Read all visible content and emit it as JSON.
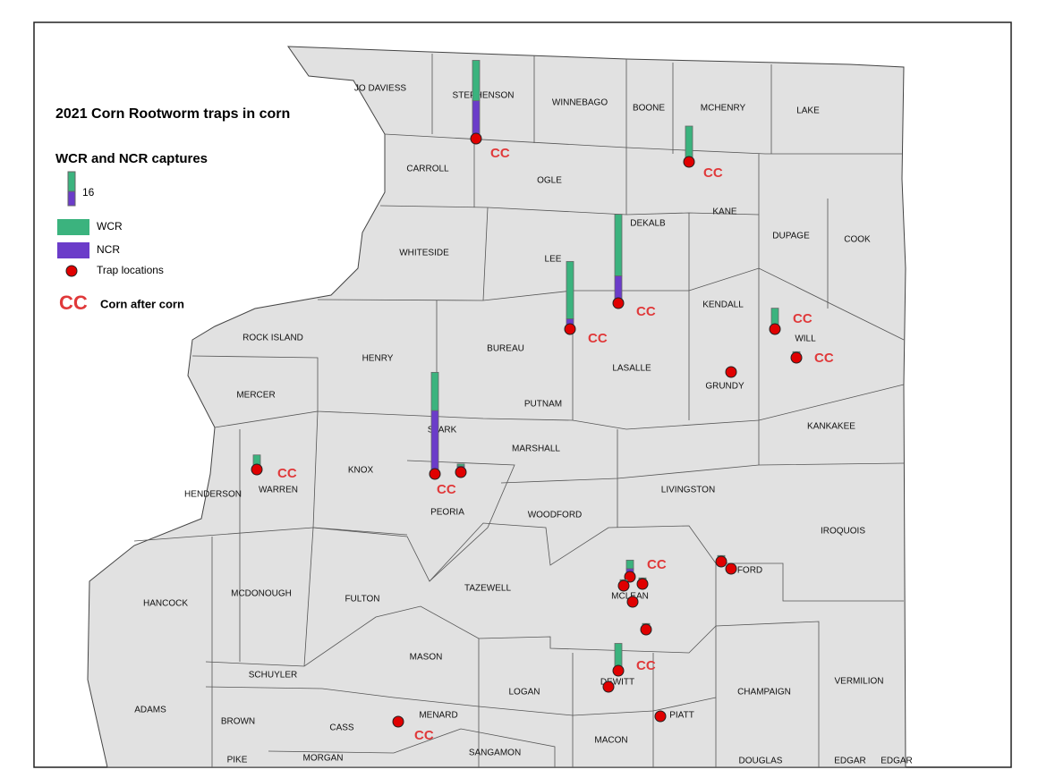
{
  "title": "2021 Corn Rootworm traps in corn",
  "legend": {
    "heading": "WCR and NCR captures",
    "scale_value": 16,
    "wcr": "WCR",
    "ncr": "NCR",
    "trap": "Trap locations",
    "cc_symbol": "CC",
    "cc": "Corn after corn",
    "wcr_color": "#3bb37e",
    "ncr_color": "#6b3cc9",
    "trap_color": "#e00000"
  },
  "counties": [
    "JO DAVIESS",
    "STEPHENSON",
    "WINNEBAGO",
    "BOONE",
    "MCHENRY",
    "LAKE",
    "CARROLL",
    "OGLE",
    "KANE",
    "DEKALB",
    "DUPAGE",
    "COOK",
    "WHITESIDE",
    "LEE",
    "KENDALL",
    "ROCK ISLAND",
    "BUREAU",
    "WILL",
    "HENRY",
    "LASALLE",
    "GRUNDY",
    "MERCER",
    "PUTNAM",
    "KANKAKEE",
    "STARK",
    "MARSHALL",
    "KNOX",
    "HENDERSON",
    "WARREN",
    "PEORIA",
    "LIVINGSTON",
    "WOODFORD",
    "IROQUOIS",
    "FORD",
    "HANCOCK",
    "MCDONOUGH",
    "FULTON",
    "TAZEWELL",
    "MCLEAN",
    "SCHUYLER",
    "MASON",
    "DEWITT",
    "VERMILION",
    "CHAMPAIGN",
    "LOGAN",
    "ADAMS",
    "BROWN",
    "MENARD",
    "PIATT",
    "CASS",
    "MACON",
    "SANGAMON",
    "PIKE",
    "MORGAN",
    "DOUGLAS",
    "EDGAR",
    "EDGAR"
  ],
  "traps": [
    {
      "wcr": 19,
      "ncr": 17,
      "cc": true
    },
    {
      "wcr": 16,
      "ncr": 0,
      "cc": true
    },
    {
      "wcr": 29,
      "ncr": 12,
      "cc": true
    },
    {
      "wcr": 27,
      "ncr": 4,
      "cc": true
    },
    {
      "wcr": 18,
      "ncr": 29,
      "cc": true
    },
    {
      "wcr": 1,
      "ncr": 2,
      "cc": false
    },
    {
      "wcr": 5,
      "ncr": 1,
      "cc": true
    },
    {
      "wcr": 8,
      "ncr": 1,
      "cc": true
    },
    {
      "wcr": 1,
      "ncr": 1,
      "cc": true
    },
    {
      "wcr": 0,
      "ncr": 0,
      "cc": false
    },
    {
      "wcr": 4,
      "ncr": 3,
      "cc": true
    },
    {
      "wcr": 1,
      "ncr": 1,
      "cc": false
    },
    {
      "wcr": 1,
      "ncr": 1,
      "cc": false
    },
    {
      "wcr": 0,
      "ncr": 0,
      "cc": false
    },
    {
      "wcr": 1,
      "ncr": 1,
      "cc": false
    },
    {
      "wcr": 12,
      "ncr": 0,
      "cc": true
    },
    {
      "wcr": 0,
      "ncr": 0,
      "cc": false
    },
    {
      "wcr": 0,
      "ncr": 0,
      "cc": false
    },
    {
      "wcr": 0,
      "ncr": 0,
      "cc": true
    },
    {
      "wcr": 1,
      "ncr": 1,
      "cc": false
    },
    {
      "wcr": 1,
      "ncr": 0,
      "cc": false
    }
  ]
}
